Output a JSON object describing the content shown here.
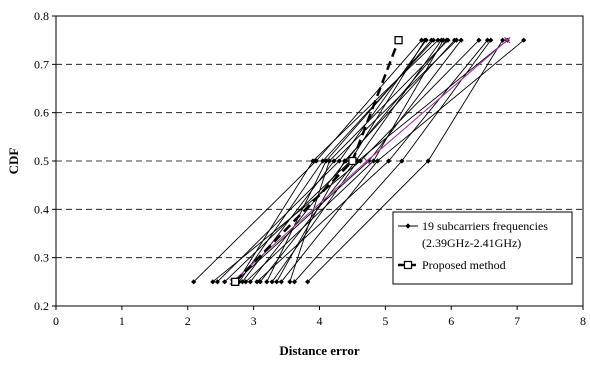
{
  "chart_data": {
    "type": "line",
    "title": "",
    "xlabel": "Distance error",
    "ylabel": "CDF",
    "xlim": [
      0,
      8
    ],
    "ylim": [
      0.2,
      0.8
    ],
    "x_ticks": [
      "0",
      "1",
      "2",
      "3",
      "4",
      "5",
      "6",
      "7",
      "8"
    ],
    "y_ticks": [
      "0.2",
      "0.3",
      "0.4",
      "0.5",
      "0.6",
      "0.7",
      "0.8"
    ],
    "y_values": [
      0.25,
      0.5,
      0.75
    ],
    "grid": "horizontal-dashed",
    "legend_position": "lower-right",
    "legend": [
      {
        "label": "19 subcarriers frequencies",
        "label_line2": "(2.39GHz-2.41GHz)",
        "style": "thin-line-diamond"
      },
      {
        "label": "Proposed method",
        "style": "dashed-thick-square"
      }
    ],
    "series": [
      {
        "name": "19 subcarriers frequencies (2.39GHz-2.41GHz)",
        "color": "#000000",
        "lines": [
          [
            2.09,
            3.95,
            5.55
          ],
          [
            2.38,
            4.62,
            6.42
          ],
          [
            2.45,
            4.3,
            5.62
          ],
          [
            2.56,
            4.47,
            5.6
          ],
          [
            2.72,
            4.75,
            6.15
          ],
          [
            2.75,
            3.9,
            5.8
          ],
          [
            2.78,
            4.05,
            5.73
          ],
          [
            2.83,
            4.22,
            6.08
          ],
          [
            2.95,
            4.4,
            5.93
          ],
          [
            3.1,
            4.55,
            5.85
          ],
          [
            3.2,
            4.1,
            5.7
          ],
          [
            3.28,
            4.58,
            6.85
          ],
          [
            3.35,
            4.38,
            6.05
          ],
          [
            3.42,
            4.88,
            7.1
          ],
          [
            3.55,
            4.15,
            5.95
          ],
          [
            3.62,
            5.25,
            6.6
          ],
          [
            3.82,
            5.65,
            6.78
          ],
          [
            3.05,
            5.05,
            6.55
          ],
          [
            2.88,
            4.82,
            5.88
          ]
        ]
      },
      {
        "name": "",
        "color": "#a03aa0",
        "lines": [
          [
            2.68,
            4.72,
            6.85
          ]
        ]
      },
      {
        "name": "Proposed method",
        "color": "#000000",
        "lines": [
          [
            2.72,
            4.5,
            5.2
          ]
        ]
      }
    ]
  }
}
